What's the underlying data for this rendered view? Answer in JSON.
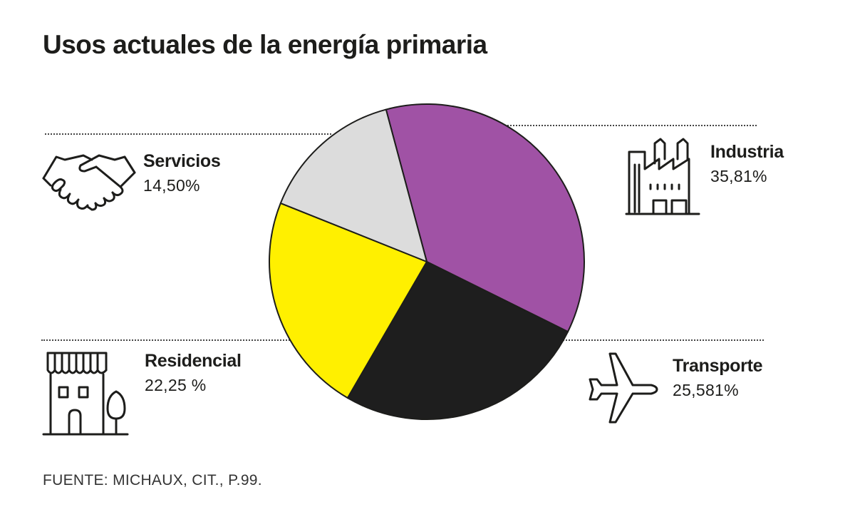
{
  "title": "Usos actuales de la energía primaria",
  "source": "FUENTE: MICHAUX, CIT., P.99.",
  "chart_data": {
    "type": "pie",
    "title": "Usos actuales de la energía primaria",
    "slices": [
      {
        "name": "Industria",
        "label": "35,81%",
        "value": 35.81,
        "color": "#a052a5",
        "icon": "factory-icon"
      },
      {
        "name": "Transporte",
        "label": "25,581%",
        "value": 25.581,
        "color": "#1e1e1e",
        "icon": "airplane-icon"
      },
      {
        "name": "Residencial",
        "label": "22,25 %",
        "value": 22.25,
        "color": "#fff000",
        "icon": "house-shop-icon"
      },
      {
        "name": "Servicios",
        "label": "14,50%",
        "value": 14.5,
        "color": "#dcdcdc",
        "icon": "handshake-icon"
      }
    ],
    "start_angle_deg": -15,
    "direction": "clockwise",
    "stroke_color": "#1d1d1b"
  }
}
